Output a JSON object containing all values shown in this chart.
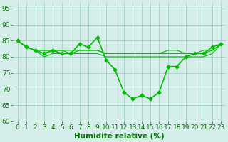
{
  "x": [
    0,
    1,
    2,
    3,
    4,
    5,
    6,
    7,
    8,
    9,
    10,
    11,
    12,
    13,
    14,
    15,
    16,
    17,
    18,
    19,
    20,
    21,
    22,
    23
  ],
  "series": [
    {
      "y": [
        85,
        83,
        82,
        81,
        82,
        81,
        81,
        84,
        83,
        86,
        79,
        76,
        69,
        67,
        68,
        67,
        69,
        77,
        77,
        80,
        81,
        81,
        83,
        84
      ],
      "lw": 1.2,
      "marker": "D",
      "ms": 2.5
    },
    {
      "y": [
        85,
        83,
        82,
        82,
        82,
        82,
        81,
        82,
        82,
        82,
        81,
        81,
        81,
        81,
        81,
        81,
        81,
        81,
        81,
        81,
        81,
        81,
        82,
        84
      ],
      "lw": 0.8,
      "marker": null,
      "ms": 0
    },
    {
      "y": [
        85,
        83,
        82,
        82,
        82,
        82,
        82,
        82,
        82,
        82,
        81,
        81,
        81,
        81,
        81,
        81,
        81,
        82,
        82,
        81,
        81,
        82,
        82,
        84
      ],
      "lw": 0.8,
      "marker": null,
      "ms": 0
    },
    {
      "y": [
        85,
        83,
        82,
        80,
        81,
        81,
        81,
        81,
        81,
        81,
        80,
        80,
        80,
        80,
        80,
        80,
        80,
        80,
        80,
        80,
        80,
        80,
        81,
        84
      ],
      "lw": 0.8,
      "marker": null,
      "ms": 0
    }
  ],
  "line_color": "#00bb00",
  "xlabel": "Humidité relative (%)",
  "xlim": [
    -0.5,
    23.5
  ],
  "ylim": [
    60,
    97
  ],
  "yticks": [
    60,
    65,
    70,
    75,
    80,
    85,
    90,
    95
  ],
  "xticks": [
    0,
    1,
    2,
    3,
    4,
    5,
    6,
    7,
    8,
    9,
    10,
    11,
    12,
    13,
    14,
    15,
    16,
    17,
    18,
    19,
    20,
    21,
    22,
    23
  ],
  "grid_color": "#99ccbb",
  "bg_color": "#d5eeea",
  "text_color": "#007700",
  "xlabel_fontsize": 7.5,
  "tick_fontsize": 6.5
}
